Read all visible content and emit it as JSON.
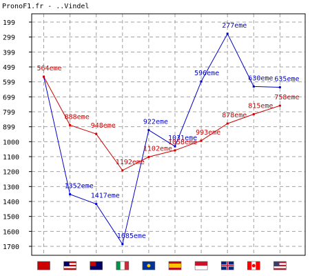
{
  "chart_data": {
    "type": "line",
    "title": "PronoF1.fr - ..Vindel",
    "y_ticks": [
      "199",
      "299",
      "399",
      "499",
      "599",
      "699",
      "799",
      "899",
      "1000",
      "1100",
      "1200",
      "1300",
      "1400",
      "1500",
      "1600",
      "1700"
    ],
    "ylim": [
      199,
      1700
    ],
    "y_inverted": true,
    "grid": true,
    "categories": [
      "Bahrain",
      "Malaysia",
      "Australia",
      "Italy",
      "Europe",
      "Spain",
      "Monaco",
      "Great Britain",
      "Canada",
      "United States"
    ],
    "series": [
      {
        "color": "#0000cc",
        "values": [
          564,
          1352,
          1417,
          1685,
          922,
          1031,
          596,
          277,
          630,
          635
        ],
        "labels": [
          "",
          "1352eme",
          "1417eme",
          "1685eme",
          "922eme",
          "1031eme",
          "596eme",
          "277eme",
          "630eme",
          "635eme"
        ]
      },
      {
        "color": "#cc0000",
        "values": [
          564,
          888,
          948,
          1192,
          1102,
          1058,
          993,
          878,
          815,
          758
        ],
        "labels": [
          "564eme",
          "888eme",
          "948eme",
          "1192eme",
          "1102eme",
          "1058eme",
          "993eme",
          "878eme",
          "815eme",
          "758eme"
        ]
      }
    ],
    "flags": [
      {
        "name": "bahrain-flag-icon",
        "stripes": [
          "#cc0000"
        ],
        "dir": "v"
      },
      {
        "name": "malaysia-flag-icon",
        "stripes": [
          "#cc0000",
          "#ffffff",
          "#cc0000",
          "#ffffff",
          "#cc0000"
        ],
        "dir": "h",
        "canton": "#000066"
      },
      {
        "name": "australia-flag-icon",
        "stripes": [
          "#000066"
        ],
        "dir": "h",
        "canton": "#cc0000"
      },
      {
        "name": "italy-flag-icon",
        "stripes": [
          "#009246",
          "#ffffff",
          "#ce2b37"
        ],
        "dir": "v"
      },
      {
        "name": "europe-flag-icon",
        "stripes": [
          "#003399"
        ],
        "dir": "h",
        "dot": "#ffcc00"
      },
      {
        "name": "spain-flag-icon",
        "stripes": [
          "#c60b1e",
          "#ffc400",
          "#ffc400",
          "#c60b1e"
        ],
        "dir": "h"
      },
      {
        "name": "monaco-flag-icon",
        "stripes": [
          "#ce1126",
          "#ffffff"
        ],
        "dir": "h"
      },
      {
        "name": "great-britain-flag-icon",
        "stripes": [
          "#00247d"
        ],
        "dir": "h",
        "cross": "#cf142b"
      },
      {
        "name": "canada-flag-icon",
        "stripes": [
          "#ff0000",
          "#ffffff",
          "#ff0000"
        ],
        "dir": "v",
        "dot": "#ff0000"
      },
      {
        "name": "united-states-flag-icon",
        "stripes": [
          "#b22234",
          "#ffffff",
          "#b22234",
          "#ffffff",
          "#b22234"
        ],
        "dir": "h",
        "canton": "#3c3b6e"
      }
    ]
  }
}
